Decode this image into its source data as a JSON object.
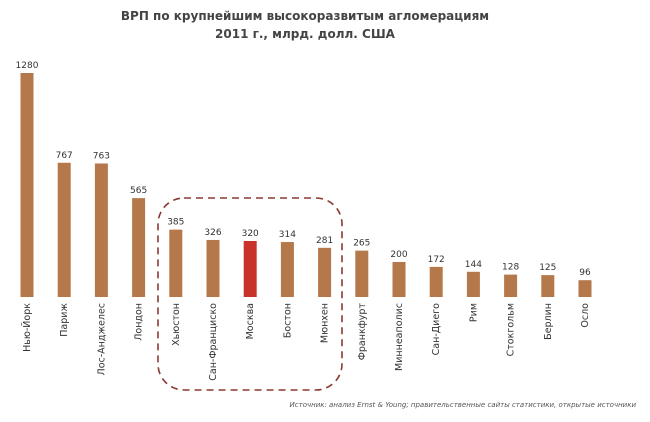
{
  "chart_data": {
    "type": "bar",
    "title": "ВРП по крупнейшим высокоразвитым агломерациям",
    "subtitle": "2011 г., млрд. долл. США",
    "categories": [
      "Нью-Йорк",
      "Париж",
      "Лос-Анджелес",
      "Лондон",
      "Хьюстон",
      "Сан-Франциско",
      "Москва",
      "Бостон",
      "Мюнхен",
      "Франкфурт",
      "Миннеаполис",
      "Сан-Диего",
      "Рим",
      "Стокгольм",
      "Берлин",
      "Осло"
    ],
    "values": [
      1280,
      767,
      763,
      565,
      385,
      326,
      320,
      314,
      281,
      265,
      200,
      172,
      144,
      128,
      125,
      96
    ],
    "colors": [
      "#b5784a",
      "#b5784a",
      "#b5784a",
      "#b5784a",
      "#b5784a",
      "#b5784a",
      "#c9322b",
      "#b5784a",
      "#b5784a",
      "#b5784a",
      "#b5784a",
      "#b5784a",
      "#b5784a",
      "#b5784a",
      "#b5784a",
      "#b5784a"
    ],
    "source": "Источник: анализ Ernst & Young; правительственные сайты статистики, открытые источники"
  }
}
